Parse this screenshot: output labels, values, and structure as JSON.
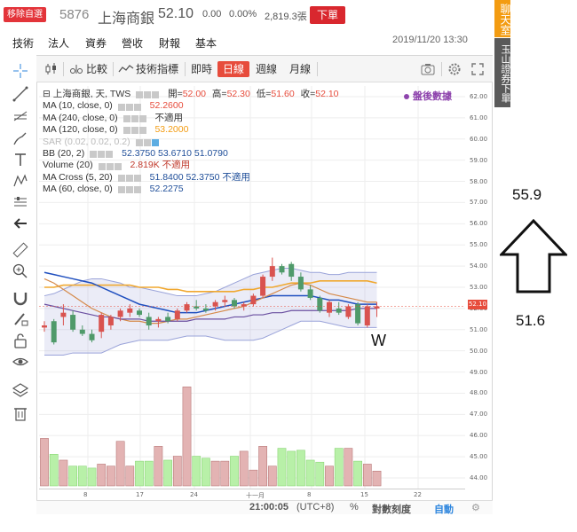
{
  "header": {
    "remove_label": "移除自選",
    "symbol": "5876",
    "name": "上海商銀",
    "price": "52.10",
    "change": "0.00",
    "change_pct": "0.00%",
    "volume": "2,819.3張",
    "order_label": "下單",
    "tabs": [
      "技術",
      "法人",
      "資券",
      "營收",
      "財報",
      "基本"
    ],
    "datetime": "2019/11/20 13:30"
  },
  "toolbar": {
    "compare_label": "比較",
    "indicators_label": "技術指標",
    "periods": [
      "即時",
      "日線",
      "週線",
      "月線"
    ],
    "active_period": "日線"
  },
  "legend": {
    "main": {
      "label": "上海商銀, 天, TWS",
      "open_label": "開=",
      "open": "52.00",
      "high_label": "高=",
      "high": "52.30",
      "low_label": "低=",
      "low": "51.60",
      "close_label": "收=",
      "close": "52.10"
    },
    "rows": [
      {
        "label": "MA (10, close, 0)",
        "value": "52.2600",
        "color": "#e74c3c",
        "faded": false
      },
      {
        "label": "MA (240, close, 0)",
        "value": "不適用",
        "color": "#333333",
        "faded": false
      },
      {
        "label": "MA (120, close, 0)",
        "value": "53.2000",
        "color": "#f39c12",
        "faded": false
      },
      {
        "label": "SAR (0.02, 0.02, 0.2)",
        "value": "",
        "color": "#bbbbbb",
        "faded": true
      },
      {
        "label": "BB (20, 2)",
        "value": "52.3750  53.6710  51.0790",
        "color": "#1f4e99",
        "faded": false
      },
      {
        "label": "Volume (20)",
        "value": "2.819K  不適用",
        "color": "#c0392b",
        "faded": false
      },
      {
        "label": "MA Cross (5, 20)",
        "value": "51.8400  52.3750  不適用",
        "color": "#9b59b6",
        "faded": false
      },
      {
        "label": "MA (60, close, 0)",
        "value": "52.2275",
        "color": "#1f4e99",
        "faded": false
      }
    ],
    "after_hours": "盤後數據"
  },
  "y_axis": {
    "ticks": [
      "62.00",
      "61.00",
      "60.00",
      "59.00",
      "58.00",
      "57.00",
      "56.00",
      "55.00",
      "54.00",
      "53.00",
      "52.00",
      "51.00",
      "50.00",
      "49.00",
      "48.00",
      "47.00",
      "46.00",
      "45.00",
      "44.00"
    ],
    "current_price_label": "52.10"
  },
  "x_axis": {
    "ticks": [
      "8",
      "17",
      "24",
      "十一月",
      "8",
      "15",
      "22"
    ]
  },
  "statusbar": {
    "time": "21:00:05",
    "timezone": "(UTC+8)",
    "percent": "%",
    "log_scale": "對數刻度",
    "auto": "自動"
  },
  "sidebar": {
    "chat": "聊天室",
    "broker": "玉山證券下單"
  },
  "annotations": {
    "top_value": "55.9",
    "bottom_value": "51.6",
    "pattern": "W"
  },
  "chart_data": {
    "type": "candlestick",
    "price_range": [
      43.5,
      62.5
    ],
    "candles": [
      {
        "o": 51.1,
        "h": 51.4,
        "l": 50.9,
        "c": 51.2
      },
      {
        "o": 51.4,
        "h": 51.5,
        "l": 50.3,
        "c": 50.4
      },
      {
        "o": 51.6,
        "h": 52.2,
        "l": 51.2,
        "c": 51.8
      },
      {
        "o": 51.7,
        "h": 51.9,
        "l": 50.9,
        "c": 51.0
      },
      {
        "o": 51.0,
        "h": 51.2,
        "l": 50.7,
        "c": 50.8
      },
      {
        "o": 50.8,
        "h": 51.0,
        "l": 50.4,
        "c": 50.5
      },
      {
        "o": 50.9,
        "h": 51.8,
        "l": 50.6,
        "c": 51.7
      },
      {
        "o": 51.2,
        "h": 51.7,
        "l": 51.0,
        "c": 51.6
      },
      {
        "o": 51.6,
        "h": 52.0,
        "l": 51.4,
        "c": 51.9
      },
      {
        "o": 51.8,
        "h": 52.2,
        "l": 51.6,
        "c": 52.0
      },
      {
        "o": 51.9,
        "h": 52.0,
        "l": 51.6,
        "c": 51.7
      },
      {
        "o": 51.6,
        "h": 51.8,
        "l": 51.0,
        "c": 51.2
      },
      {
        "o": 51.4,
        "h": 51.6,
        "l": 51.1,
        "c": 51.5
      },
      {
        "o": 51.6,
        "h": 51.8,
        "l": 51.3,
        "c": 51.4
      },
      {
        "o": 51.5,
        "h": 52.0,
        "l": 51.4,
        "c": 51.9
      },
      {
        "o": 51.9,
        "h": 52.3,
        "l": 51.8,
        "c": 52.2
      },
      {
        "o": 52.1,
        "h": 52.4,
        "l": 51.9,
        "c": 52.0
      },
      {
        "o": 52.0,
        "h": 52.2,
        "l": 51.8,
        "c": 51.9
      },
      {
        "o": 52.1,
        "h": 52.4,
        "l": 51.9,
        "c": 52.3
      },
      {
        "o": 52.3,
        "h": 52.6,
        "l": 52.1,
        "c": 52.4
      },
      {
        "o": 52.4,
        "h": 52.5,
        "l": 52.0,
        "c": 52.1
      },
      {
        "o": 52.1,
        "h": 52.3,
        "l": 51.9,
        "c": 52.2
      },
      {
        "o": 52.2,
        "h": 52.7,
        "l": 52.1,
        "c": 52.6
      },
      {
        "o": 52.6,
        "h": 53.6,
        "l": 52.5,
        "c": 53.5
      },
      {
        "o": 53.5,
        "h": 54.4,
        "l": 53.3,
        "c": 54.0
      },
      {
        "o": 54.0,
        "h": 54.1,
        "l": 53.6,
        "c": 53.7
      },
      {
        "o": 54.1,
        "h": 54.2,
        "l": 53.3,
        "c": 53.5
      },
      {
        "o": 53.5,
        "h": 53.7,
        "l": 52.8,
        "c": 52.9
      },
      {
        "o": 52.9,
        "h": 53.1,
        "l": 52.4,
        "c": 52.5
      },
      {
        "o": 52.5,
        "h": 52.6,
        "l": 51.8,
        "c": 51.9
      },
      {
        "o": 51.8,
        "h": 52.4,
        "l": 51.6,
        "c": 52.3
      },
      {
        "o": 52.0,
        "h": 52.3,
        "l": 51.7,
        "c": 51.8
      },
      {
        "o": 51.6,
        "h": 52.2,
        "l": 51.5,
        "c": 52.1
      },
      {
        "o": 52.2,
        "h": 52.3,
        "l": 51.2,
        "c": 51.3
      },
      {
        "o": 51.2,
        "h": 52.2,
        "l": 51.1,
        "c": 52.1
      },
      {
        "o": 52.0,
        "h": 52.3,
        "l": 51.6,
        "c": 52.1
      }
    ],
    "bb_upper": [
      52.6,
      52.7,
      52.9,
      53.1,
      53.3,
      53.4,
      53.4,
      53.3,
      53.2,
      53.0,
      53.0,
      52.9,
      52.8,
      52.7,
      52.6,
      52.6,
      52.6,
      52.7,
      52.8,
      53.0,
      53.2,
      53.4,
      53.6,
      53.7,
      53.8,
      53.9,
      53.9,
      53.8,
      53.7,
      53.7,
      53.6,
      53.6,
      53.7,
      53.7,
      53.7,
      53.7
    ],
    "bb_lower": [
      49.8,
      49.8,
      49.8,
      49.9,
      49.9,
      49.9,
      49.9,
      50.1,
      50.3,
      50.4,
      50.5,
      50.5,
      50.5,
      50.5,
      50.6,
      50.7,
      50.7,
      50.7,
      50.6,
      50.5,
      50.5,
      50.5,
      50.5,
      50.6,
      50.8,
      51.0,
      51.2,
      51.4,
      51.4,
      51.4,
      51.3,
      51.2,
      51.1,
      51.1,
      51.1,
      51.1
    ],
    "ma120": [
      53.0,
      53.0,
      53.1,
      53.1,
      53.1,
      53.1,
      53.1,
      53.1,
      53.1,
      53.1,
      53.0,
      53.0,
      53.0,
      52.9,
      52.9,
      52.8,
      52.8,
      52.8,
      52.8,
      52.8,
      52.8,
      52.9,
      52.9,
      53.0,
      53.0,
      53.1,
      53.2,
      53.2,
      53.2,
      53.3,
      53.3,
      53.3,
      53.3,
      53.3,
      53.3,
      53.2
    ],
    "ma60": [
      53.7,
      53.6,
      53.5,
      53.4,
      53.3,
      53.2,
      53.0,
      52.8,
      52.6,
      52.4,
      52.2,
      52.1,
      52.0,
      51.9,
      51.8,
      51.8,
      51.8,
      51.9,
      52.0,
      52.1,
      52.2,
      52.3,
      52.4,
      52.5,
      52.6,
      52.6,
      52.6,
      52.6,
      52.6,
      52.5,
      52.4,
      52.4,
      52.3,
      52.2,
      52.2,
      52.2
    ],
    "ma10": [
      53.4,
      53.2,
      52.9,
      52.6,
      52.3,
      52.0,
      51.8,
      51.6,
      51.5,
      51.4,
      51.4,
      51.3,
      51.3,
      51.4,
      51.5,
      51.5,
      51.6,
      51.7,
      51.8,
      51.9,
      52.0,
      52.1,
      52.3,
      52.5,
      52.7,
      52.9,
      53.1,
      53.2,
      53.1,
      52.9,
      52.7,
      52.6,
      52.5,
      52.4,
      52.3,
      52.3
    ],
    "ma_cross": [
      52.2,
      52.1,
      52.0,
      51.9,
      51.8,
      51.7,
      51.6,
      51.6,
      51.5,
      51.5,
      51.5,
      51.4,
      51.4,
      51.4,
      51.4,
      51.4,
      51.5,
      51.5,
      51.5,
      51.5,
      51.6,
      51.6,
      51.7,
      51.7,
      51.8,
      51.8,
      51.9,
      51.9,
      51.9,
      51.9,
      51.9,
      51.9,
      51.9,
      52.0,
      52.0,
      52.0
    ],
    "volume_max": 10,
    "volume": [
      4.8,
      3.2,
      2.6,
      2.0,
      2.0,
      1.8,
      2.2,
      2.0,
      4.5,
      2.0,
      2.5,
      2.5,
      4.0,
      2.6,
      3.0,
      10.0,
      3.0,
      2.8,
      2.5,
      2.5,
      3.0,
      3.5,
      1.6,
      4.0,
      2.0,
      3.8,
      3.5,
      3.6,
      2.6,
      2.4,
      2.0,
      3.8,
      3.8,
      2.5,
      2.2,
      1.5
    ]
  }
}
